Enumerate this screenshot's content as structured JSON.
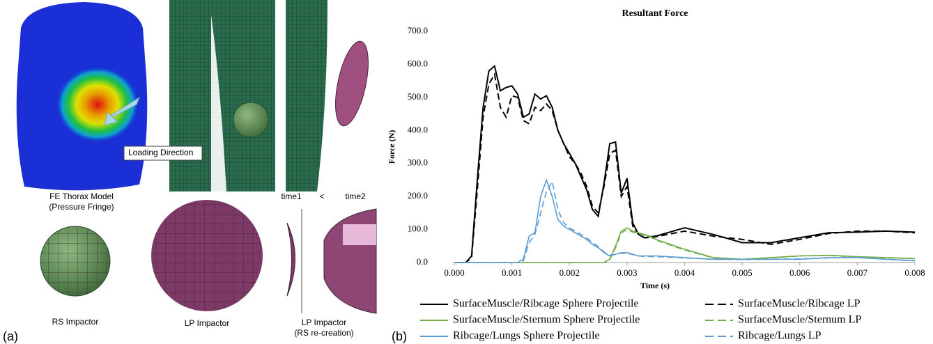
{
  "panel_a": {
    "label": "(a)",
    "loading_direction": "Loading Direction",
    "thorax_title": "FE Thorax Model",
    "thorax_subtitle": "(Pressure Fringe)",
    "time1": "time1",
    "less_than": "<",
    "time2": "time2",
    "rs_impactor": "RS Impactor",
    "lp_impactor": "LP Impactor",
    "lp_recreation_title": "LP Impactor",
    "lp_recreation_subtitle": "(RS re-creation)"
  },
  "panel_b": {
    "label": "(b)"
  },
  "chart_data": {
    "type": "line",
    "title": "Resultant Force",
    "x_label": "Time (s)",
    "y_label": "Force (N)",
    "x": [
      0,
      0.0001,
      0.0002,
      0.0003,
      0.0004,
      0.0005,
      0.0006,
      0.0007,
      0.0008,
      0.0009,
      0.001,
      0.0011,
      0.0012,
      0.0013,
      0.0014,
      0.0015,
      0.0016,
      0.0017,
      0.0018,
      0.0019,
      0.002,
      0.0021,
      0.0022,
      0.0023,
      0.0024,
      0.0025,
      0.0026,
      0.0027,
      0.0028,
      0.0029,
      0.003,
      0.0031,
      0.0032,
      0.0033,
      0.0034,
      0.0035,
      0.004,
      0.0045,
      0.005,
      0.0055,
      0.006,
      0.0065,
      0.007,
      0.0075,
      0.008
    ],
    "series": [
      {
        "name": "SurfaceMuscle/Ribcage Sphere Projectile",
        "color": "#000000",
        "dash": false,
        "values": [
          0,
          0,
          0,
          20,
          250,
          470,
          580,
          595,
          520,
          530,
          535,
          510,
          440,
          450,
          510,
          495,
          505,
          470,
          400,
          360,
          330,
          300,
          260,
          220,
          160,
          140,
          240,
          360,
          365,
          210,
          255,
          120,
          85,
          75,
          78,
          80,
          105,
          85,
          60,
          60,
          75,
          90,
          92,
          95,
          92
        ]
      },
      {
        "name": "SurfaceMuscle/Ribcage LP",
        "color": "#000000",
        "dash": true,
        "values": [
          0,
          0,
          0,
          15,
          220,
          440,
          540,
          570,
          470,
          440,
          505,
          500,
          430,
          420,
          470,
          460,
          480,
          460,
          400,
          360,
          320,
          300,
          270,
          230,
          170,
          150,
          230,
          330,
          340,
          200,
          230,
          110,
          85,
          75,
          75,
          78,
          95,
          80,
          70,
          55,
          70,
          88,
          95,
          95,
          90
        ]
      },
      {
        "name": "SurfaceMuscle/Sternum Sphere Projectile",
        "color": "#70ad47",
        "dash": false,
        "values": [
          0,
          0,
          0,
          0,
          0,
          0,
          0,
          0,
          0,
          0,
          0,
          0,
          0,
          0,
          0,
          0,
          0,
          0,
          0,
          0,
          0,
          0,
          0,
          0,
          0,
          0,
          0,
          10,
          50,
          95,
          105,
          95,
          90,
          85,
          80,
          70,
          40,
          15,
          10,
          15,
          20,
          22,
          18,
          15,
          12
        ]
      },
      {
        "name": "SurfaceMuscle/Sternum LP",
        "color": "#70ad47",
        "dash": true,
        "values": [
          0,
          0,
          0,
          0,
          0,
          0,
          0,
          0,
          0,
          0,
          0,
          0,
          0,
          0,
          0,
          0,
          0,
          0,
          0,
          0,
          0,
          0,
          0,
          0,
          0,
          0,
          0,
          8,
          45,
          90,
          100,
          92,
          88,
          82,
          78,
          68,
          38,
          14,
          10,
          14,
          20,
          21,
          17,
          14,
          12
        ]
      },
      {
        "name": "Ribcage/Lungs Sphere Projectile",
        "color": "#5b9bd5",
        "dash": false,
        "values": [
          0,
          0,
          0,
          0,
          0,
          0,
          0,
          0,
          0,
          0,
          0,
          0,
          10,
          80,
          90,
          200,
          250,
          200,
          130,
          110,
          100,
          90,
          80,
          70,
          55,
          45,
          30,
          20,
          25,
          30,
          30,
          25,
          20,
          20,
          20,
          20,
          15,
          10,
          10,
          10,
          10,
          15,
          15,
          10,
          5
        ]
      },
      {
        "name": "Ribcage/Lungs LP",
        "color": "#5b9bd5",
        "dash": true,
        "values": [
          0,
          0,
          0,
          0,
          0,
          0,
          0,
          0,
          0,
          0,
          0,
          0,
          5,
          60,
          85,
          150,
          215,
          245,
          160,
          120,
          105,
          95,
          85,
          75,
          60,
          48,
          32,
          22,
          25,
          28,
          28,
          24,
          20,
          18,
          18,
          18,
          14,
          10,
          9,
          10,
          11,
          14,
          16,
          10,
          6
        ]
      }
    ],
    "xlim": [
      0,
      0.008
    ],
    "xticks": [
      {
        "value": 0,
        "label": "0.000"
      },
      {
        "value": 0.001,
        "label": "0.001"
      },
      {
        "value": 0.002,
        "label": "0.002"
      },
      {
        "value": 0.003,
        "label": "0.003"
      },
      {
        "value": 0.004,
        "label": "0.004"
      },
      {
        "value": 0.005,
        "label": "0.005"
      },
      {
        "value": 0.006,
        "label": "0.006"
      },
      {
        "value": 0.007,
        "label": "0.007"
      },
      {
        "value": 0.008,
        "label": "0.008"
      }
    ],
    "ylim": [
      0,
      700
    ],
    "yticks": [
      {
        "value": 0,
        "label": "0.0"
      },
      {
        "value": 100,
        "label": "100.0"
      },
      {
        "value": 200,
        "label": "200.0"
      },
      {
        "value": 300,
        "label": "300.0"
      },
      {
        "value": 400,
        "label": "400.0"
      },
      {
        "value": 500,
        "label": "500.0"
      },
      {
        "value": 600,
        "label": "600.0"
      },
      {
        "value": 700,
        "label": "700.0"
      }
    ],
    "grid": false
  }
}
